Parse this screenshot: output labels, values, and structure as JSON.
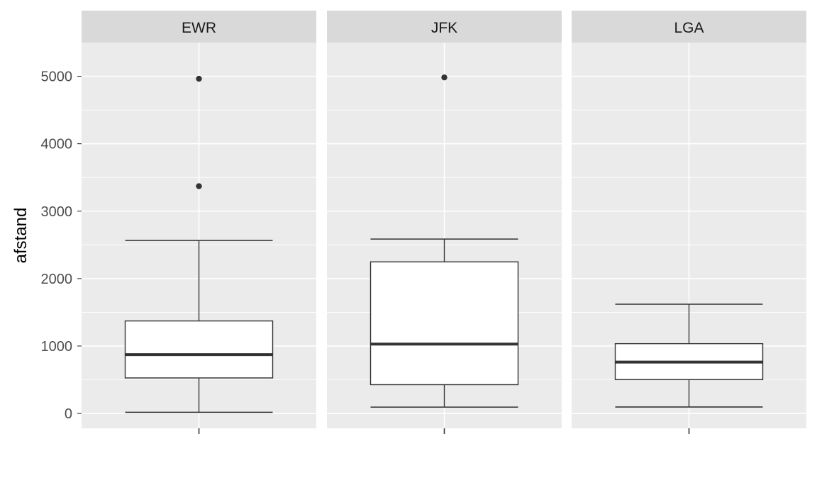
{
  "chart_data": {
    "type": "boxplot",
    "ylabel": "afstand",
    "xlabel": "",
    "ylim": [
      -220,
      5500
    ],
    "y_ticks": [
      0,
      1000,
      2000,
      3000,
      4000,
      5000
    ],
    "grid": true,
    "facets": [
      {
        "label": "EWR",
        "whisker_low": 17,
        "q1": 527,
        "median": 872,
        "q3": 1372,
        "whisker_high": 2565,
        "outliers": [
          3370,
          4963
        ]
      },
      {
        "label": "JFK",
        "whisker_low": 94,
        "q1": 427,
        "median": 1028,
        "q3": 2248,
        "whisker_high": 2586,
        "outliers": [
          4983
        ]
      },
      {
        "label": "LGA",
        "whisker_low": 96,
        "q1": 502,
        "median": 762,
        "q3": 1035,
        "whisker_high": 1620,
        "outliers": []
      }
    ]
  },
  "colors": {
    "panel_background": "#ebebeb",
    "strip_background": "#d9d9d9",
    "grid_major": "#ffffff",
    "box_fill": "#ffffff",
    "box_line": "#333333",
    "tick_text": "#4d4d4d"
  }
}
